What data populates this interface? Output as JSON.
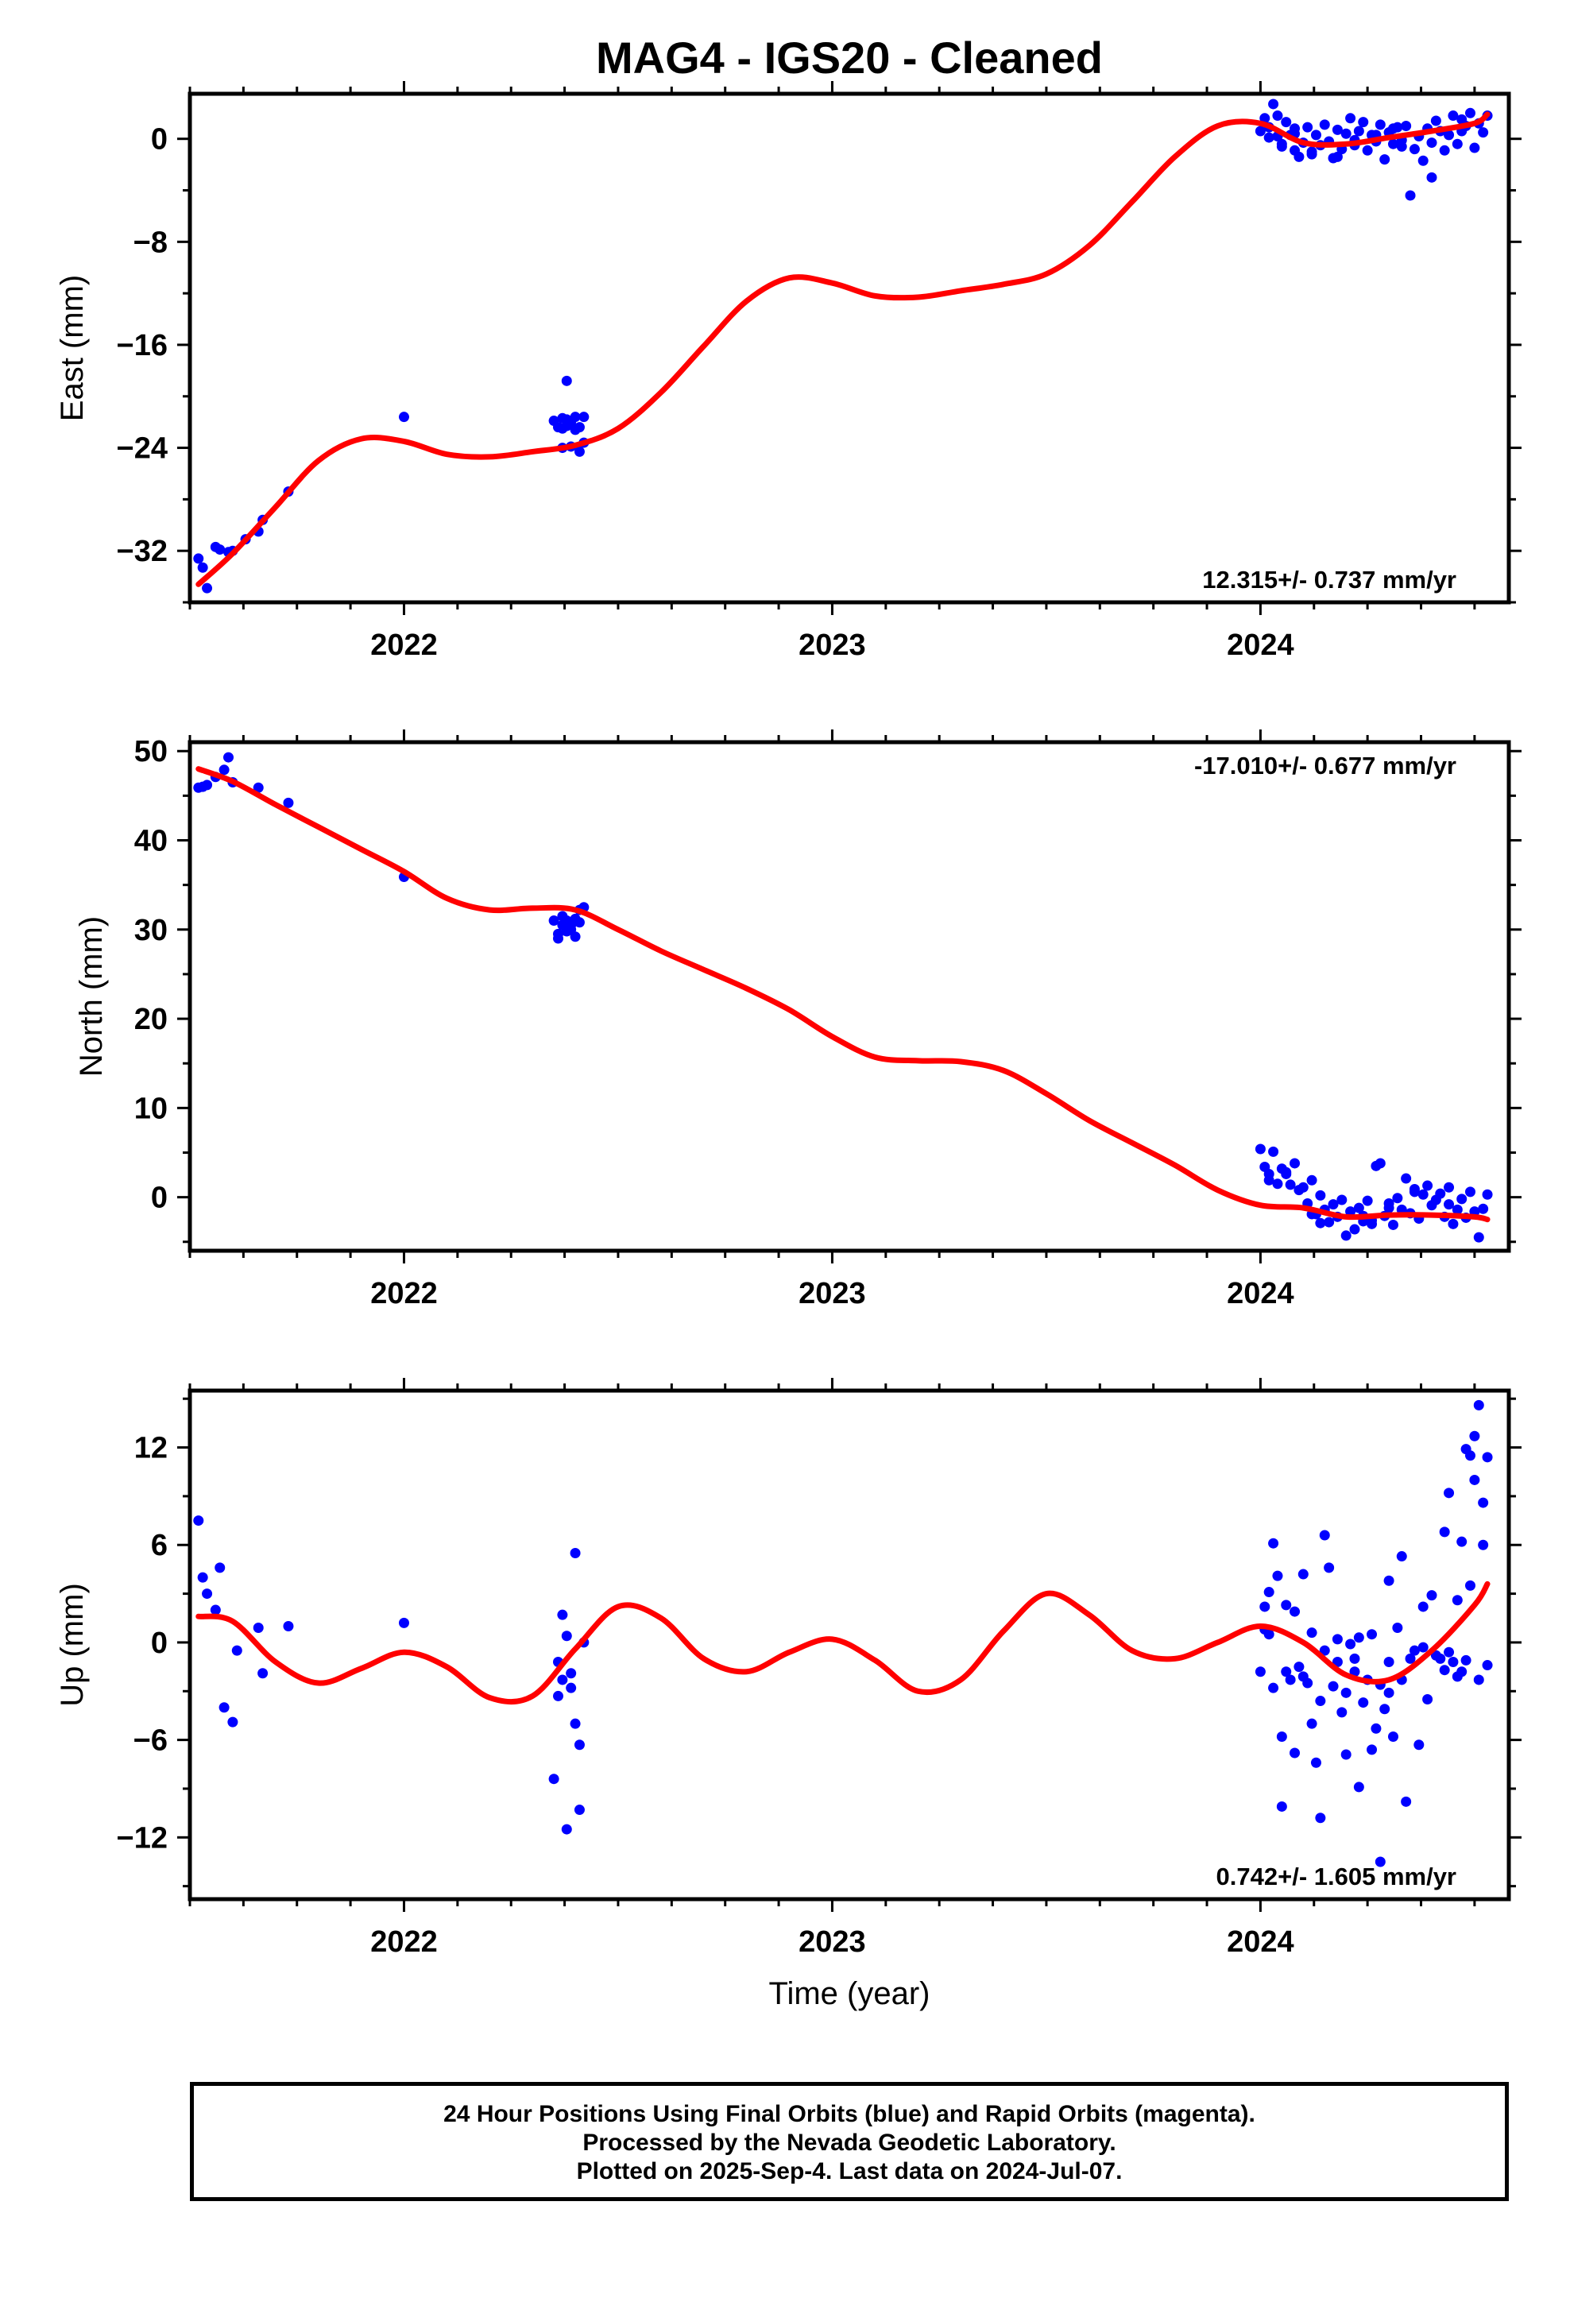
{
  "title": "MAG4  - IGS20 - Cleaned",
  "footer": {
    "line1": "24 Hour Positions Using Final Orbits (blue) and Rapid Orbits (magenta).",
    "line2": "Processed by the Nevada Geodetic Laboratory.",
    "line3": "Plotted on 2025-Sep-4. Last data on 2024-Jul-07."
  },
  "colors": {
    "points": "#0000ff",
    "fit": "#ff0000",
    "frame": "#000000"
  },
  "chart_data": [
    {
      "type": "scatter",
      "ylabel": "East (mm)",
      "xlabel": "",
      "xlim": [
        2021.5,
        2024.58
      ],
      "ylim": [
        -36,
        3.5
      ],
      "xticks": [
        "2022",
        "2023",
        "2024"
      ],
      "yticks": [
        0,
        -8,
        -16,
        -24,
        -32
      ],
      "rate_label": "12.315+/- 0.737 mm/yr",
      "series": [
        {
          "kind": "points",
          "x": [
            2021.52,
            2021.53,
            2021.54,
            2021.56,
            2021.57,
            2021.59,
            2021.6,
            2021.63,
            2021.66,
            2021.67,
            2021.73,
            2022.0,
            2022.35,
            2022.36,
            2022.37,
            2022.37,
            2022.38,
            2022.38,
            2022.39,
            2022.39,
            2022.4,
            2022.4,
            2022.41,
            2022.41,
            2022.42,
            2022.42,
            2022.38,
            2022.37,
            2024.0,
            2024.01,
            2024.02,
            2024.02,
            2024.03,
            2024.04,
            2024.04,
            2024.05,
            2024.06,
            2024.07,
            2024.08,
            2024.08,
            2024.09,
            2024.1,
            2024.11,
            2024.12,
            2024.13,
            2024.14,
            2024.15,
            2024.16,
            2024.17,
            2024.18,
            2024.19,
            2024.2,
            2024.21,
            2024.22,
            2024.23,
            2024.24,
            2024.25,
            2024.26,
            2024.27,
            2024.28,
            2024.29,
            2024.3,
            2024.31,
            2024.32,
            2024.33,
            2024.34,
            2024.35,
            2024.36,
            2024.37,
            2024.38,
            2024.39,
            2024.4,
            2024.41,
            2024.42,
            2024.43,
            2024.44,
            2024.45,
            2024.46,
            2024.47,
            2024.48,
            2024.49,
            2024.5,
            2024.51,
            2024.52,
            2024.53,
            2024.05,
            2024.12,
            2024.22,
            2024.31,
            2024.4,
            2024.47,
            2024.33,
            2024.27,
            2024.18,
            2024.08
          ],
          "y": [
            -32.6,
            -33.3,
            -34.9,
            -31.7,
            -31.9,
            -32.1,
            -32.0,
            -31.1,
            -30.5,
            -29.6,
            -27.4,
            -21.6,
            -21.9,
            -22.4,
            -21.7,
            -24.0,
            -22.3,
            -21.8,
            -22.0,
            -23.9,
            -22.6,
            -21.6,
            -24.3,
            -22.4,
            -21.6,
            -23.6,
            -18.8,
            -22.5,
            0.6,
            1.6,
            0.1,
            0.9,
            2.7,
            1.8,
            0.2,
            -0.6,
            1.3,
            0.3,
            -0.9,
            0.8,
            -1.4,
            -0.3,
            0.9,
            -1.0,
            0.3,
            -0.5,
            1.1,
            -0.2,
            -1.5,
            0.7,
            -0.8,
            0.4,
            1.6,
            -0.5,
            0.6,
            1.3,
            -0.9,
            0.3,
            -0.2,
            1.1,
            -1.6,
            0.5,
            -0.4,
            0.9,
            -0.6,
            1.0,
            -4.4,
            -0.8,
            0.2,
            -1.7,
            0.8,
            -0.3,
            1.4,
            0.6,
            -0.9,
            0.3,
            1.8,
            -0.4,
            0.6,
            1.0,
            2.0,
            -0.7,
            1.2,
            0.5,
            1.8,
            -0.4,
            -1.2,
            -0.1,
            0.8,
            -3.0,
            1.5,
            -0.1,
            0.3,
            -1.4,
            0.4
          ]
        },
        {
          "kind": "fit",
          "x": [
            2021.52,
            2021.6,
            2021.7,
            2021.8,
            2021.9,
            2022.0,
            2022.1,
            2022.2,
            2022.3,
            2022.4,
            2022.5,
            2022.6,
            2022.7,
            2022.8,
            2022.9,
            2023.0,
            2023.1,
            2023.2,
            2023.3,
            2023.4,
            2023.5,
            2023.6,
            2023.7,
            2023.8,
            2023.9,
            2024.0,
            2024.1,
            2024.2,
            2024.3,
            2024.4,
            2024.5,
            2024.53
          ],
          "y": [
            -34.6,
            -32.2,
            -28.6,
            -25.0,
            -23.3,
            -23.5,
            -24.5,
            -24.7,
            -24.3,
            -23.8,
            -22.5,
            -19.7,
            -16.1,
            -12.6,
            -10.8,
            -11.2,
            -12.2,
            -12.3,
            -11.8,
            -11.3,
            -10.5,
            -8.3,
            -4.9,
            -1.4,
            1.0,
            1.2,
            -0.3,
            -0.4,
            0.1,
            0.6,
            1.2,
            1.9
          ]
        }
      ]
    },
    {
      "type": "scatter",
      "ylabel": "North (mm)",
      "xlabel": "",
      "xlim": [
        2021.5,
        2024.58
      ],
      "ylim": [
        -6,
        51
      ],
      "xticks": [
        "2022",
        "2023",
        "2024"
      ],
      "yticks": [
        50,
        40,
        30,
        20,
        10,
        0
      ],
      "rate_label": "-17.010+/- 0.677 mm/yr",
      "series": [
        {
          "kind": "points",
          "x": [
            2021.52,
            2021.53,
            2021.54,
            2021.56,
            2021.58,
            2021.59,
            2021.6,
            2021.66,
            2021.73,
            2022.0,
            2022.35,
            2022.36,
            2022.37,
            2022.37,
            2022.38,
            2022.38,
            2022.39,
            2022.39,
            2022.4,
            2022.4,
            2022.41,
            2022.41,
            2022.42,
            2022.36,
            2024.0,
            2024.01,
            2024.02,
            2024.02,
            2024.03,
            2024.04,
            2024.05,
            2024.06,
            2024.07,
            2024.08,
            2024.09,
            2024.1,
            2024.11,
            2024.12,
            2024.13,
            2024.14,
            2024.15,
            2024.16,
            2024.17,
            2024.18,
            2024.19,
            2024.2,
            2024.21,
            2024.22,
            2024.23,
            2024.24,
            2024.25,
            2024.26,
            2024.27,
            2024.28,
            2024.29,
            2024.3,
            2024.31,
            2024.32,
            2024.33,
            2024.34,
            2024.35,
            2024.36,
            2024.37,
            2024.38,
            2024.39,
            2024.4,
            2024.41,
            2024.42,
            2024.43,
            2024.44,
            2024.45,
            2024.46,
            2024.47,
            2024.48,
            2024.49,
            2024.5,
            2024.51,
            2024.52,
            2024.53,
            2024.06,
            2024.14,
            2024.24,
            2024.3,
            2024.36,
            2024.44,
            2024.12,
            2024.26
          ],
          "y": [
            45.9,
            46.0,
            46.2,
            47.1,
            47.9,
            49.3,
            46.5,
            45.9,
            44.2,
            35.9,
            31.0,
            29.0,
            30.5,
            31.5,
            29.8,
            31.0,
            30.0,
            30.5,
            29.2,
            31.2,
            30.8,
            32.2,
            32.5,
            29.5,
            5.4,
            3.4,
            1.9,
            2.6,
            5.1,
            1.5,
            3.2,
            2.8,
            1.4,
            3.8,
            0.8,
            1.1,
            -0.7,
            1.9,
            -1.9,
            0.2,
            -1.4,
            -2.8,
            -0.8,
            -2.2,
            -0.3,
            -4.3,
            -1.6,
            -3.6,
            -1.2,
            -2.1,
            -0.4,
            -2.6,
            3.5,
            3.8,
            -2.1,
            -0.7,
            -3.1,
            -0.1,
            -1.4,
            2.1,
            -1.8,
            0.6,
            -2.4,
            0.3,
            1.3,
            -0.9,
            -0.3,
            0.4,
            -2.2,
            1.1,
            -3.0,
            -1.4,
            -0.2,
            -2.3,
            0.6,
            -1.6,
            -4.5,
            -1.3,
            0.3,
            2.6,
            -2.9,
            -2.7,
            -1.2,
            0.9,
            -0.8,
            -1.9,
            -3.0
          ]
        },
        {
          "kind": "fit",
          "x": [
            2021.52,
            2021.6,
            2021.7,
            2021.8,
            2021.9,
            2022.0,
            2022.1,
            2022.2,
            2022.3,
            2022.4,
            2022.5,
            2022.6,
            2022.7,
            2022.8,
            2022.9,
            2023.0,
            2023.1,
            2023.2,
            2023.3,
            2023.4,
            2023.5,
            2023.6,
            2023.7,
            2023.8,
            2023.9,
            2024.0,
            2024.1,
            2024.2,
            2024.3,
            2024.4,
            2024.5,
            2024.53
          ],
          "y": [
            48.0,
            46.6,
            44.0,
            41.5,
            39.0,
            36.5,
            33.5,
            32.2,
            32.4,
            32.2,
            30.0,
            27.6,
            25.5,
            23.4,
            21.0,
            18.0,
            15.7,
            15.3,
            15.2,
            14.2,
            11.6,
            8.6,
            6.1,
            3.6,
            0.8,
            -0.9,
            -1.2,
            -2.2,
            -2.0,
            -2.0,
            -2.2,
            -2.5
          ]
        }
      ]
    },
    {
      "type": "scatter",
      "ylabel": "Up (mm)",
      "xlabel": "Time (year)",
      "xlim": [
        2021.5,
        2024.58
      ],
      "ylim": [
        -15.8,
        15.5
      ],
      "xticks": [
        "2022",
        "2023",
        "2024"
      ],
      "yticks": [
        12,
        6,
        0,
        -6,
        -12
      ],
      "rate_label": "0.742+/- 1.605 mm/yr",
      "series": [
        {
          "kind": "points",
          "x": [
            2021.52,
            2021.53,
            2021.54,
            2021.56,
            2021.57,
            2021.58,
            2021.6,
            2021.61,
            2021.66,
            2021.67,
            2021.73,
            2022.0,
            2022.35,
            2022.36,
            2022.37,
            2022.38,
            2022.38,
            2022.39,
            2022.39,
            2022.4,
            2022.4,
            2022.41,
            2022.41,
            2022.42,
            2022.37,
            2022.36,
            2024.0,
            2024.01,
            2024.01,
            2024.02,
            2024.03,
            2024.03,
            2024.04,
            2024.05,
            2024.05,
            2024.06,
            2024.07,
            2024.08,
            2024.08,
            2024.09,
            2024.1,
            2024.1,
            2024.11,
            2024.12,
            2024.12,
            2024.13,
            2024.14,
            2024.15,
            2024.15,
            2024.16,
            2024.17,
            2024.18,
            2024.18,
            2024.19,
            2024.2,
            2024.2,
            2024.21,
            2024.22,
            2024.23,
            2024.23,
            2024.24,
            2024.25,
            2024.26,
            2024.26,
            2024.27,
            2024.28,
            2024.28,
            2024.29,
            2024.3,
            2024.3,
            2024.31,
            2024.32,
            2024.33,
            2024.33,
            2024.34,
            2024.35,
            2024.36,
            2024.37,
            2024.38,
            2024.38,
            2024.39,
            2024.4,
            2024.41,
            2024.42,
            2024.43,
            2024.43,
            2024.44,
            2024.45,
            2024.46,
            2024.47,
            2024.48,
            2024.48,
            2024.49,
            2024.5,
            2024.5,
            2024.51,
            2024.51,
            2024.52,
            2024.52,
            2024.53,
            2024.53,
            2024.49,
            2024.47,
            2024.46,
            2024.44,
            2024.3,
            2024.22,
            2024.14,
            2024.06,
            2024.02
          ],
          "y": [
            7.5,
            4.0,
            3.0,
            2.0,
            4.6,
            -4.0,
            -4.9,
            -0.5,
            0.9,
            -1.9,
            1.0,
            1.2,
            -8.4,
            -3.3,
            1.7,
            -11.5,
            0.4,
            -2.8,
            -1.9,
            -5.0,
            5.5,
            -6.3,
            -10.3,
            0.0,
            -2.3,
            -1.2,
            -1.8,
            2.2,
            0.8,
            3.1,
            -2.8,
            6.1,
            4.1,
            -5.8,
            -10.1,
            -1.8,
            -2.3,
            -6.8,
            1.9,
            -1.5,
            4.2,
            -2.1,
            -2.5,
            0.6,
            -5.0,
            -7.4,
            -3.6,
            6.6,
            -0.5,
            4.6,
            -2.7,
            0.2,
            -1.2,
            -4.3,
            -3.1,
            -6.9,
            -0.1,
            -1.8,
            -8.9,
            0.3,
            -3.7,
            -2.3,
            -6.6,
            0.5,
            -5.3,
            -13.5,
            -2.6,
            -4.1,
            3.8,
            -1.2,
            -5.8,
            0.9,
            -2.3,
            5.3,
            -9.8,
            -1.0,
            -0.5,
            -6.3,
            -0.3,
            2.2,
            -3.5,
            2.9,
            -0.8,
            -1.0,
            -1.7,
            6.8,
            9.2,
            -1.2,
            -2.1,
            6.2,
            11.9,
            -1.1,
            11.5,
            12.7,
            10.0,
            14.6,
            -2.3,
            8.6,
            6.0,
            -1.4,
            11.4,
            3.5,
            -1.8,
            2.6,
            -0.6,
            -3.1,
            -1.0,
            -10.8,
            2.3,
            0.5
          ]
        },
        {
          "kind": "fit",
          "x": [
            2021.52,
            2021.6,
            2021.7,
            2021.8,
            2021.9,
            2022.0,
            2022.1,
            2022.2,
            2022.3,
            2022.4,
            2022.5,
            2022.6,
            2022.7,
            2022.8,
            2022.9,
            2023.0,
            2023.1,
            2023.2,
            2023.3,
            2023.4,
            2023.5,
            2023.6,
            2023.7,
            2023.8,
            2023.9,
            2024.0,
            2024.1,
            2024.2,
            2024.3,
            2024.4,
            2024.5,
            2024.53
          ],
          "y": [
            1.6,
            1.3,
            -1.2,
            -2.5,
            -1.6,
            -0.6,
            -1.5,
            -3.4,
            -3.3,
            -0.4,
            2.2,
            1.5,
            -1.0,
            -1.8,
            -0.6,
            0.2,
            -1.1,
            -3.0,
            -2.3,
            0.7,
            3.0,
            1.7,
            -0.5,
            -1.0,
            0.0,
            1.0,
            0.0,
            -2.0,
            -2.3,
            -0.5,
            2.3,
            3.6
          ]
        }
      ]
    }
  ]
}
